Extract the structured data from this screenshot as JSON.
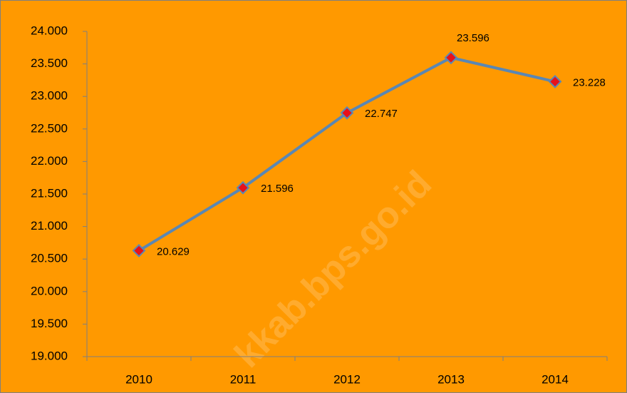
{
  "chart_data": {
    "type": "line",
    "categories": [
      "2010",
      "2011",
      "2012",
      "2013",
      "2014"
    ],
    "series": [
      {
        "name": null,
        "color": "#5a87b4",
        "marker_color": "#e8101a",
        "values": [
          20629,
          21596,
          22747,
          23596,
          23228
        ],
        "value_labels": [
          "20.629",
          "21.596",
          "22.747",
          "23.596",
          "23.228"
        ]
      }
    ],
    "ylim": [
      19000,
      24000
    ],
    "yticks": [
      {
        "value": 19000,
        "label": "19.000"
      },
      {
        "value": 19500,
        "label": "19.500"
      },
      {
        "value": 20000,
        "label": "20.000"
      },
      {
        "value": 20500,
        "label": "20.500"
      },
      {
        "value": 21000,
        "label": "21.000"
      },
      {
        "value": 21500,
        "label": "21.500"
      },
      {
        "value": 22000,
        "label": "22.000"
      },
      {
        "value": 22500,
        "label": "22.500"
      },
      {
        "value": 23000,
        "label": "23.000"
      },
      {
        "value": 23500,
        "label": "23.500"
      },
      {
        "value": 24000,
        "label": "24.000"
      }
    ],
    "grid": false,
    "background": "#ff9900",
    "watermark": "kkab.bps.go.id"
  }
}
